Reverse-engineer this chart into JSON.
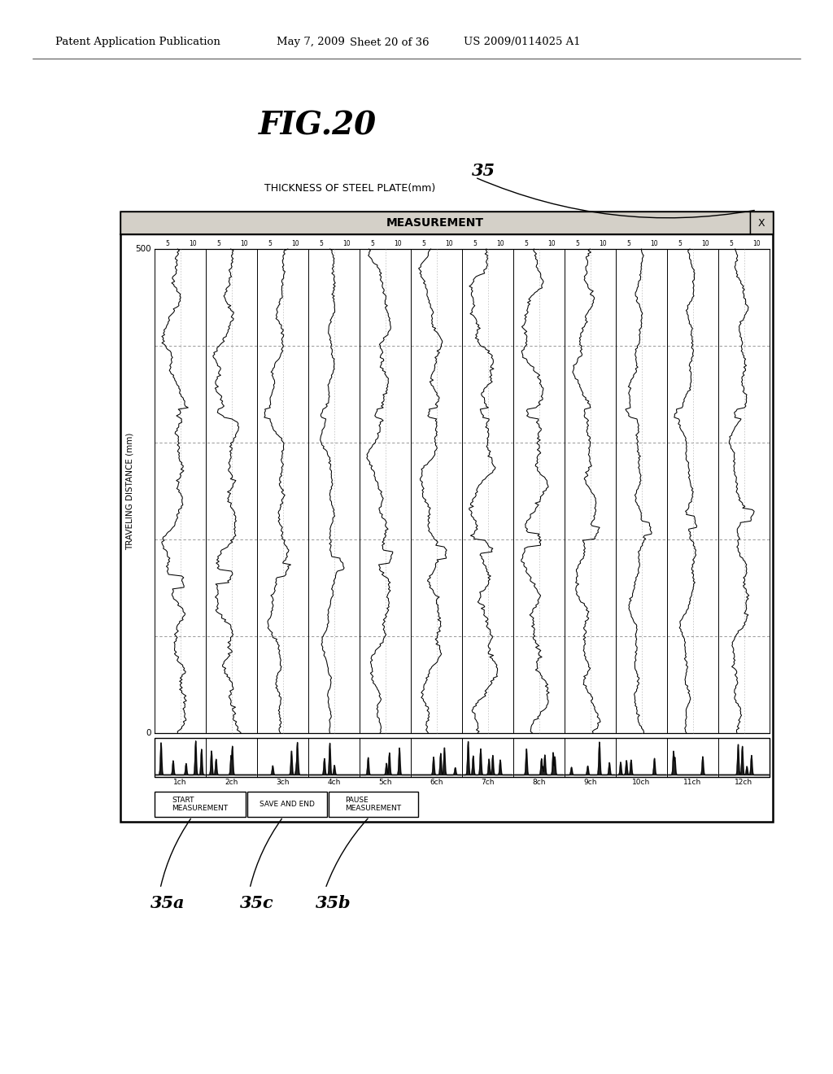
{
  "bg_color": "#ffffff",
  "header_text": "Patent Application Publication",
  "header_date": "May 7, 2009",
  "header_sheet": "Sheet 20 of 36",
  "header_patent": "US 2009/0114025 A1",
  "fig_title": "FIG.20",
  "label_35": "35",
  "label_35a": "35a",
  "label_35b": "35b",
  "label_35c": "35c",
  "screen_title": "THICKNESS OF STEEL PLATE(mm)",
  "measurement_label": "MEASUREMENT",
  "x_label": "X",
  "ytop_label": "500",
  "ybottom_label": "0",
  "yaxis_label": "TRAVELING DISTANCE (mm)",
  "num_channels": 12,
  "channel_labels": [
    "1ch",
    "2ch",
    "3ch",
    "4ch",
    "5ch",
    "6ch",
    "7ch",
    "8ch",
    "9ch",
    "10ch",
    "11ch",
    "12ch"
  ],
  "btn1_line1": "START",
  "btn1_line2": "MEASUREMENT",
  "btn2": "SAVE AND END",
  "btn3_line1": "PAUSE",
  "btn3_line2": "MEASUREMENT"
}
